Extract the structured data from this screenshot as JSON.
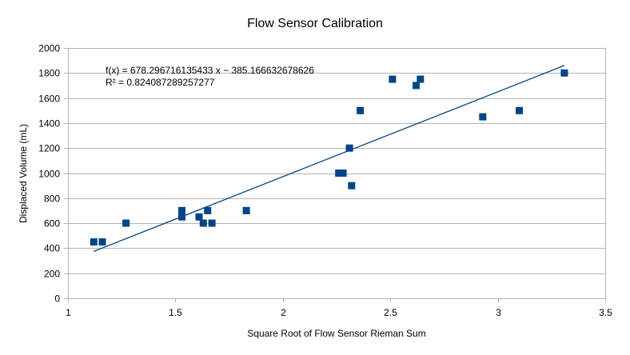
{
  "chart_data": {
    "type": "scatter",
    "title": "Flow Sensor Calibration",
    "xlabel": "Square Root of Flow Sensor Rieman Sum",
    "ylabel": "Displaced Volume (mL)",
    "xlim": [
      1,
      3.5
    ],
    "ylim": [
      0,
      2000
    ],
    "x_ticks": [
      1,
      1.5,
      2,
      2.5,
      3,
      3.5
    ],
    "x_tick_labels": [
      "1",
      "1.5",
      "2",
      "2.5",
      "3",
      "3.5"
    ],
    "y_ticks": [
      0,
      200,
      400,
      600,
      800,
      1000,
      1200,
      1400,
      1600,
      1800,
      2000
    ],
    "y_tick_labels": [
      "0",
      "200",
      "400",
      "600",
      "800",
      "1000",
      "1200",
      "1400",
      "1600",
      "1800",
      "2000"
    ],
    "grid": "horizontal",
    "series": [
      {
        "color": "#004586",
        "marker": "square",
        "x": [
          1.12,
          1.16,
          1.27,
          1.53,
          1.53,
          1.61,
          1.63,
          1.65,
          1.67,
          1.83,
          2.26,
          2.28,
          2.31,
          2.32,
          2.36,
          2.51,
          2.62,
          2.64,
          2.93,
          3.1,
          3.31
        ],
        "y": [
          450,
          450,
          600,
          700,
          650,
          650,
          600,
          700,
          600,
          700,
          1000,
          1000,
          1200,
          900,
          1500,
          1750,
          1700,
          1750,
          1450,
          1500,
          1800
        ]
      }
    ],
    "trendline": {
      "type": "linear",
      "slope": 678.296716135433,
      "intercept": -385.166632678626,
      "x_range": [
        1.12,
        3.31
      ],
      "color": "#004586",
      "equation": "f(x) = 678.296716135433 x − 385.166632678626",
      "r_squared": "R² = 0.824087289257277"
    },
    "colors": {
      "grid": "#b3b3b3",
      "axis": "#b3b3b3",
      "text": "#000000"
    }
  }
}
